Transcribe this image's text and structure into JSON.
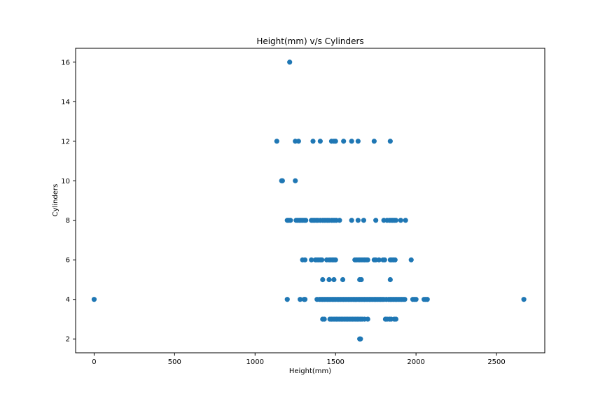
{
  "chart_data": {
    "type": "scatter",
    "title": "Height(mm) v/s Cylinders",
    "xlabel": "Height(mm)",
    "ylabel": "Cylinders",
    "xlim": [
      -115,
      2800
    ],
    "ylim": [
      1.3,
      16.7
    ],
    "xticks": [
      0,
      500,
      1000,
      1500,
      2000,
      2500
    ],
    "yticks": [
      2,
      4,
      6,
      8,
      10,
      12,
      14,
      16
    ],
    "grid": false,
    "marker_color": "#1f77b4",
    "series": [
      {
        "points": [
          [
            1215,
            16
          ],
          [
            1135,
            12
          ],
          [
            1250,
            12
          ],
          [
            1270,
            12
          ],
          [
            1360,
            12
          ],
          [
            1405,
            12
          ],
          [
            1475,
            12
          ],
          [
            1490,
            12
          ],
          [
            1500,
            12
          ],
          [
            1550,
            12
          ],
          [
            1600,
            12
          ],
          [
            1640,
            12
          ],
          [
            1740,
            12
          ],
          [
            1840,
            12
          ],
          [
            1165,
            10
          ],
          [
            1170,
            10
          ],
          [
            1250,
            10
          ],
          [
            1200,
            8
          ],
          [
            1210,
            8
          ],
          [
            1220,
            8
          ],
          [
            1255,
            8
          ],
          [
            1265,
            8
          ],
          [
            1275,
            8
          ],
          [
            1285,
            8
          ],
          [
            1295,
            8
          ],
          [
            1305,
            8
          ],
          [
            1315,
            8
          ],
          [
            1350,
            8
          ],
          [
            1360,
            8
          ],
          [
            1370,
            8
          ],
          [
            1380,
            8
          ],
          [
            1390,
            8
          ],
          [
            1405,
            8
          ],
          [
            1420,
            8
          ],
          [
            1430,
            8
          ],
          [
            1440,
            8
          ],
          [
            1450,
            8
          ],
          [
            1460,
            8
          ],
          [
            1475,
            8
          ],
          [
            1485,
            8
          ],
          [
            1495,
            8
          ],
          [
            1505,
            8
          ],
          [
            1525,
            8
          ],
          [
            1600,
            8
          ],
          [
            1640,
            8
          ],
          [
            1675,
            8
          ],
          [
            1750,
            8
          ],
          [
            1800,
            8
          ],
          [
            1820,
            8
          ],
          [
            1835,
            8
          ],
          [
            1845,
            8
          ],
          [
            1855,
            8
          ],
          [
            1865,
            8
          ],
          [
            1875,
            8
          ],
          [
            1905,
            8
          ],
          [
            1935,
            8
          ],
          [
            1295,
            6
          ],
          [
            1310,
            6
          ],
          [
            1350,
            6
          ],
          [
            1375,
            6
          ],
          [
            1385,
            6
          ],
          [
            1395,
            6
          ],
          [
            1405,
            6
          ],
          [
            1415,
            6
          ],
          [
            1445,
            6
          ],
          [
            1460,
            6
          ],
          [
            1470,
            6
          ],
          [
            1480,
            6
          ],
          [
            1490,
            6
          ],
          [
            1500,
            6
          ],
          [
            1620,
            6
          ],
          [
            1630,
            6
          ],
          [
            1640,
            6
          ],
          [
            1650,
            6
          ],
          [
            1660,
            6
          ],
          [
            1670,
            6
          ],
          [
            1680,
            6
          ],
          [
            1690,
            6
          ],
          [
            1700,
            6
          ],
          [
            1740,
            6
          ],
          [
            1750,
            6
          ],
          [
            1770,
            6
          ],
          [
            1795,
            6
          ],
          [
            1805,
            6
          ],
          [
            1840,
            6
          ],
          [
            1850,
            6
          ],
          [
            1860,
            6
          ],
          [
            1870,
            6
          ],
          [
            1970,
            6
          ],
          [
            1420,
            5
          ],
          [
            1460,
            5
          ],
          [
            1490,
            5
          ],
          [
            1545,
            5
          ],
          [
            1650,
            5
          ],
          [
            1660,
            5
          ],
          [
            1840,
            5
          ],
          [
            0,
            4
          ],
          [
            1200,
            4
          ],
          [
            1280,
            4
          ],
          [
            1305,
            4
          ],
          [
            1310,
            4
          ],
          [
            1385,
            4
          ],
          [
            1400,
            4
          ],
          [
            1410,
            4
          ],
          [
            1420,
            4
          ],
          [
            1430,
            4
          ],
          [
            1440,
            4
          ],
          [
            1450,
            4
          ],
          [
            1460,
            4
          ],
          [
            1470,
            4
          ],
          [
            1480,
            4
          ],
          [
            1490,
            4
          ],
          [
            1500,
            4
          ],
          [
            1510,
            4
          ],
          [
            1520,
            4
          ],
          [
            1530,
            4
          ],
          [
            1540,
            4
          ],
          [
            1550,
            4
          ],
          [
            1560,
            4
          ],
          [
            1570,
            4
          ],
          [
            1580,
            4
          ],
          [
            1590,
            4
          ],
          [
            1600,
            4
          ],
          [
            1610,
            4
          ],
          [
            1620,
            4
          ],
          [
            1630,
            4
          ],
          [
            1640,
            4
          ],
          [
            1650,
            4
          ],
          [
            1660,
            4
          ],
          [
            1670,
            4
          ],
          [
            1680,
            4
          ],
          [
            1690,
            4
          ],
          [
            1700,
            4
          ],
          [
            1710,
            4
          ],
          [
            1720,
            4
          ],
          [
            1730,
            4
          ],
          [
            1740,
            4
          ],
          [
            1750,
            4
          ],
          [
            1760,
            4
          ],
          [
            1770,
            4
          ],
          [
            1780,
            4
          ],
          [
            1790,
            4
          ],
          [
            1800,
            4
          ],
          [
            1815,
            4
          ],
          [
            1830,
            4
          ],
          [
            1840,
            4
          ],
          [
            1850,
            4
          ],
          [
            1860,
            4
          ],
          [
            1870,
            4
          ],
          [
            1880,
            4
          ],
          [
            1890,
            4
          ],
          [
            1900,
            4
          ],
          [
            1910,
            4
          ],
          [
            1920,
            4
          ],
          [
            1930,
            4
          ],
          [
            1980,
            4
          ],
          [
            1990,
            4
          ],
          [
            2000,
            4
          ],
          [
            2050,
            4
          ],
          [
            2060,
            4
          ],
          [
            2070,
            4
          ],
          [
            2670,
            4
          ],
          [
            1420,
            3
          ],
          [
            1430,
            3
          ],
          [
            1465,
            3
          ],
          [
            1475,
            3
          ],
          [
            1485,
            3
          ],
          [
            1495,
            3
          ],
          [
            1505,
            3
          ],
          [
            1515,
            3
          ],
          [
            1525,
            3
          ],
          [
            1535,
            3
          ],
          [
            1545,
            3
          ],
          [
            1555,
            3
          ],
          [
            1565,
            3
          ],
          [
            1575,
            3
          ],
          [
            1585,
            3
          ],
          [
            1595,
            3
          ],
          [
            1605,
            3
          ],
          [
            1615,
            3
          ],
          [
            1625,
            3
          ],
          [
            1635,
            3
          ],
          [
            1645,
            3
          ],
          [
            1655,
            3
          ],
          [
            1665,
            3
          ],
          [
            1680,
            3
          ],
          [
            1700,
            3
          ],
          [
            1810,
            3
          ],
          [
            1820,
            3
          ],
          [
            1835,
            3
          ],
          [
            1845,
            3
          ],
          [
            1865,
            3
          ],
          [
            1875,
            3
          ],
          [
            1650,
            2
          ],
          [
            1655,
            2
          ]
        ]
      }
    ]
  }
}
